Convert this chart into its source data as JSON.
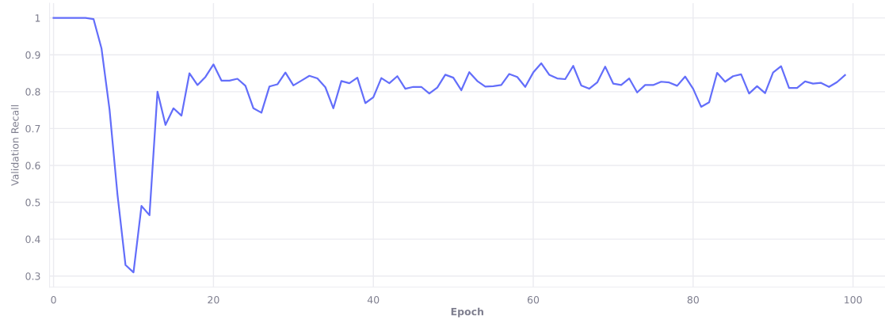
{
  "chart_data": {
    "type": "line",
    "xlabel": "Epoch",
    "ylabel": "Validation Recall",
    "x": [
      0,
      1,
      2,
      3,
      4,
      5,
      6,
      7,
      8,
      9,
      10,
      11,
      12,
      13,
      14,
      15,
      16,
      17,
      18,
      19,
      20,
      21,
      22,
      23,
      24,
      25,
      26,
      27,
      28,
      29,
      30,
      31,
      32,
      33,
      34,
      35,
      36,
      37,
      38,
      39,
      40,
      41,
      42,
      43,
      44,
      45,
      46,
      47,
      48,
      49,
      50,
      51,
      52,
      53,
      54,
      55,
      56,
      57,
      58,
      59,
      60,
      61,
      62,
      63,
      64,
      65,
      66,
      67,
      68,
      69,
      70,
      71,
      72,
      73,
      74,
      75,
      76,
      77,
      78,
      79,
      80,
      81,
      82,
      83,
      84,
      85,
      86,
      87,
      88,
      89,
      90,
      91,
      92,
      93,
      94,
      95,
      96,
      97,
      98,
      99
    ],
    "series": [
      {
        "color": "#636efa",
        "values": [
          1.0,
          1.0,
          1.0,
          1.0,
          1.0,
          0.997,
          0.917,
          0.752,
          0.52,
          0.33,
          0.31,
          0.49,
          0.465,
          0.8,
          0.71,
          0.755,
          0.735,
          0.85,
          0.818,
          0.84,
          0.874,
          0.83,
          0.83,
          0.835,
          0.816,
          0.755,
          0.743,
          0.814,
          0.82,
          0.852,
          0.817,
          0.83,
          0.843,
          0.836,
          0.812,
          0.755,
          0.829,
          0.823,
          0.838,
          0.769,
          0.785,
          0.837,
          0.823,
          0.842,
          0.808,
          0.813,
          0.813,
          0.795,
          0.811,
          0.846,
          0.838,
          0.804,
          0.853,
          0.829,
          0.814,
          0.815,
          0.818,
          0.848,
          0.84,
          0.813,
          0.852,
          0.877,
          0.846,
          0.836,
          0.834,
          0.87,
          0.817,
          0.808,
          0.825,
          0.868,
          0.822,
          0.818,
          0.836,
          0.798,
          0.818,
          0.818,
          0.827,
          0.825,
          0.816,
          0.841,
          0.808,
          0.759,
          0.771,
          0.851,
          0.827,
          0.842,
          0.847,
          0.795,
          0.815,
          0.796,
          0.852,
          0.869,
          0.81,
          0.81,
          0.828,
          0.822,
          0.824,
          0.813,
          0.826,
          0.845
        ]
      }
    ],
    "xlim": [
      -0.5,
      104
    ],
    "xticks": [
      0,
      20,
      40,
      60,
      80,
      100
    ],
    "ylim": [
      0.27,
      1.04
    ],
    "yticks": [
      0.3,
      0.4,
      0.5,
      0.6,
      0.7,
      0.8,
      0.9,
      1
    ],
    "grid": true,
    "legend": false,
    "marker": "none",
    "line_style": "solid"
  }
}
